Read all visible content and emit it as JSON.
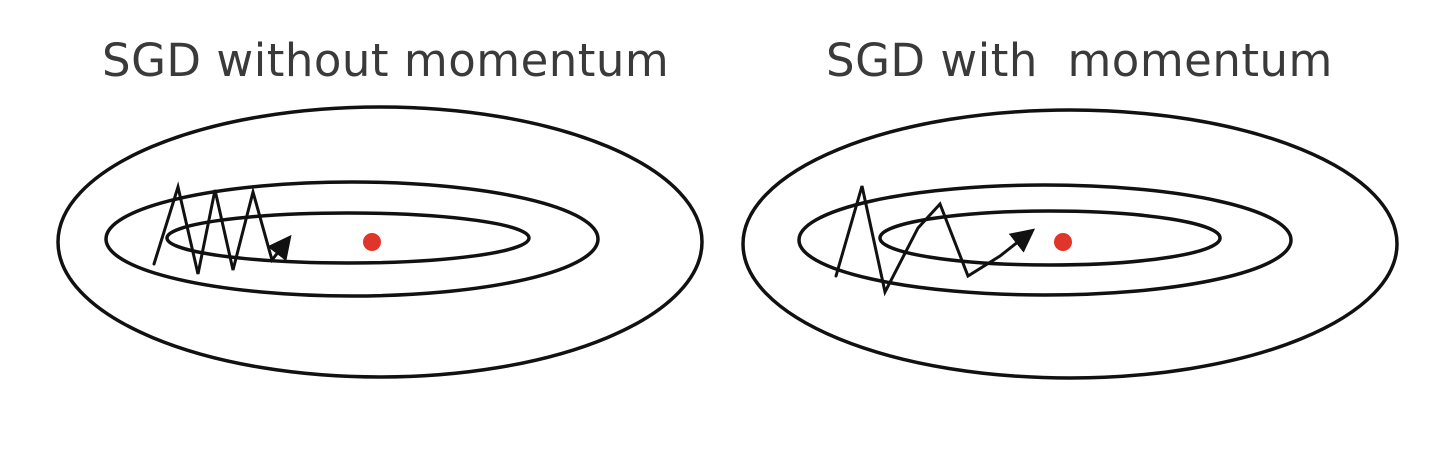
{
  "panels": [
    {
      "title": "SGD without momentum",
      "contour_count": 3,
      "trajectory": "many small oscillating steps"
    },
    {
      "title": "SGD with  momentum",
      "contour_count": 3,
      "trajectory": "fewer larger damped steps"
    }
  ],
  "colors": {
    "contour": "#111111",
    "title_text": "#3a3a3a",
    "minimum_dot": "#e0352b",
    "background": "#ffffff"
  }
}
